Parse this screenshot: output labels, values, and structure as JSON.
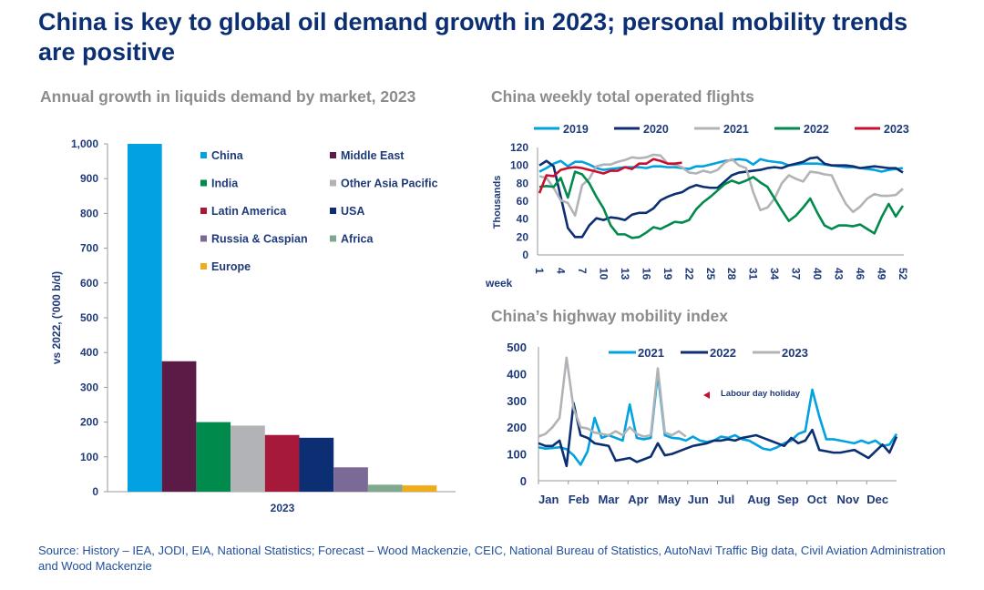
{
  "title": "China is key to global oil demand growth in 2023; personal mobility trends are positive",
  "source": "Source: History – IEA, JODI, EIA, National Statistics; Forecast – Wood Mackenzie, CEIC, National Bureau of Statistics, AutoNavi Traffic Big data, Civil Aviation Administration and Wood Mackenzie",
  "chart_data": [
    {
      "type": "bar",
      "title": "Annual growth in liquids demand by market, 2023",
      "ylabel": "vs 2022, ('000 b/d)",
      "xlabel": "",
      "ylim": [
        0,
        1000
      ],
      "yticks": [
        0,
        100,
        200,
        300,
        400,
        500,
        600,
        700,
        800,
        900,
        1000
      ],
      "ytick_labels": [
        "0",
        "100",
        "200",
        "300",
        "400",
        "500",
        "600",
        "700",
        "800",
        "900",
        "1,000"
      ],
      "categories": [
        "2023"
      ],
      "legend": "top-right inside",
      "series": [
        {
          "name": "China",
          "values": [
            1000
          ],
          "color": "#00a3e0"
        },
        {
          "name": "Middle East",
          "values": [
            375
          ],
          "color": "#5c1a47"
        },
        {
          "name": "India",
          "values": [
            200
          ],
          "color": "#008a4b"
        },
        {
          "name": "Other Asia Pacific",
          "values": [
            190
          ],
          "color": "#b1b3b6"
        },
        {
          "name": "Latin America",
          "values": [
            163
          ],
          "color": "#a6193a"
        },
        {
          "name": "USA",
          "values": [
            155
          ],
          "color": "#0c2f73"
        },
        {
          "name": "Russia & Caspian",
          "values": [
            70
          ],
          "color": "#7b6a98"
        },
        {
          "name": "Africa",
          "values": [
            20
          ],
          "color": "#7fa88e"
        },
        {
          "name": "Europe",
          "values": [
            18
          ],
          "color": "#f0ab1a"
        }
      ]
    },
    {
      "type": "line",
      "title": "China weekly total operated flights",
      "ylabel": "Thousands",
      "xlabel": "week",
      "ylim": [
        0,
        120
      ],
      "yticks": [
        0,
        20,
        40,
        60,
        80,
        100,
        120
      ],
      "xlim": [
        1,
        52
      ],
      "xticks": [
        1,
        4,
        7,
        10,
        13,
        16,
        19,
        22,
        25,
        28,
        31,
        34,
        37,
        40,
        43,
        46,
        49,
        52
      ],
      "legend": "top",
      "series": [
        {
          "name": "2019",
          "color": "#00a3e0",
          "values": [
            93,
            97,
            102,
            105,
            99,
            104,
            104,
            101,
            97,
            95,
            96,
            97,
            98,
            98,
            98,
            97,
            99,
            99,
            98,
            98,
            97,
            96,
            99,
            99,
            101,
            103,
            105,
            106,
            107,
            106,
            101,
            107,
            105,
            104,
            103,
            100,
            101,
            102,
            102,
            102,
            101,
            100,
            99,
            98,
            98,
            97,
            96,
            95,
            93,
            95,
            96,
            97
          ]
        },
        {
          "name": "2020",
          "color": "#0c2f73",
          "values": [
            100,
            105,
            99,
            65,
            30,
            20,
            20,
            33,
            41,
            39,
            42,
            41,
            39,
            45,
            47,
            47,
            52,
            61,
            65,
            68,
            70,
            75,
            78,
            76,
            75,
            75,
            82,
            89,
            92,
            93,
            94,
            95,
            97,
            98,
            97,
            100,
            102,
            104,
            108,
            109,
            102,
            100,
            100,
            100,
            99,
            97,
            98,
            99,
            98,
            97,
            97,
            92
          ]
        },
        {
          "name": "2021",
          "color": "#b1b3b6",
          "values": [
            88,
            86,
            75,
            61,
            58,
            44,
            78,
            85,
            99,
            101,
            101,
            104,
            106,
            109,
            108,
            109,
            112,
            111,
            102,
            101,
            98,
            92,
            91,
            94,
            92,
            95,
            103,
            107,
            100,
            97,
            70,
            50,
            53,
            63,
            80,
            89,
            85,
            82,
            93,
            92,
            90,
            89,
            72,
            57,
            48,
            54,
            63,
            68,
            66,
            66,
            67,
            74
          ]
        },
        {
          "name": "2022",
          "color": "#008a4b",
          "values": [
            76,
            77,
            76,
            86,
            64,
            93,
            90,
            80,
            65,
            52,
            33,
            23,
            23,
            19,
            20,
            25,
            31,
            29,
            33,
            37,
            36,
            39,
            51,
            59,
            65,
            72,
            79,
            83,
            80,
            83,
            87,
            81,
            76,
            63,
            50,
            38,
            44,
            53,
            63,
            47,
            33,
            29,
            33,
            33,
            32,
            34,
            29,
            24,
            42,
            57,
            43,
            55
          ]
        },
        {
          "name": "2023",
          "color": "#c8102e",
          "values": [
            69,
            89,
            88,
            95,
            97,
            98,
            97,
            95,
            93,
            91,
            94,
            94,
            98,
            96,
            102,
            102,
            107,
            105,
            102,
            102,
            103
          ]
        }
      ]
    },
    {
      "type": "line",
      "title": "China’s highway mobility index",
      "ylim": [
        0,
        500
      ],
      "yticks": [
        0,
        100,
        200,
        300,
        400,
        500
      ],
      "xtick_labels": [
        "Jan",
        "Feb",
        "Mar",
        "Apr",
        "May",
        "Jun",
        "Jul",
        "Aug",
        "Sep",
        "Oct",
        "Nov",
        "Dec"
      ],
      "legend": "top",
      "annotation": "Labour day holiday",
      "series": [
        {
          "name": "2021",
          "color": "#00a3e0",
          "values": [
            125,
            120,
            122,
            125,
            118,
            95,
            60,
            110,
            235,
            160,
            170,
            160,
            150,
            285,
            160,
            155,
            160,
            400,
            170,
            160,
            158,
            150,
            165,
            150,
            145,
            150,
            165,
            160,
            170,
            155,
            150,
            135,
            120,
            115,
            125,
            140,
            150,
            175,
            185,
            340,
            240,
            155,
            155,
            150,
            145,
            140,
            150,
            140,
            150,
            130,
            135,
            175
          ]
        },
        {
          "name": "2022",
          "color": "#0c2f73",
          "values": [
            140,
            130,
            130,
            150,
            55,
            290,
            170,
            160,
            140,
            135,
            130,
            75,
            80,
            85,
            70,
            80,
            90,
            140,
            95,
            100,
            110,
            120,
            130,
            135,
            140,
            150,
            150,
            155,
            150,
            160,
            165,
            170,
            160,
            150,
            140,
            130,
            160,
            140,
            150,
            190,
            115,
            110,
            105,
            105,
            110,
            115,
            100,
            85,
            110,
            135,
            105,
            165
          ]
        },
        {
          "name": "2023",
          "color": "#b1b3b6",
          "values": [
            165,
            175,
            200,
            235,
            460,
            270,
            200,
            195,
            180,
            175,
            170,
            185,
            170,
            200,
            175,
            165,
            170,
            420,
            180,
            170,
            185,
            165
          ]
        }
      ]
    }
  ]
}
